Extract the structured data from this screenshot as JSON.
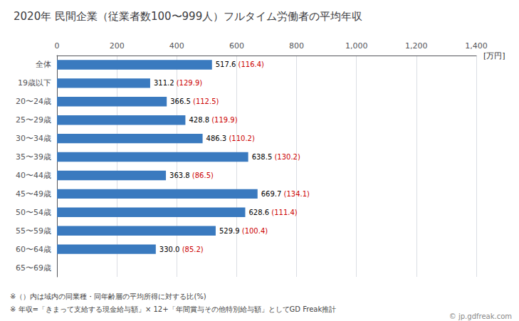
{
  "chart_data": {
    "type": "bar",
    "orientation": "horizontal",
    "title": "2020年 民間企業（従業者数100〜999人）フルタイム労働者の平均年収",
    "xlabel": "[万円]",
    "categories": [
      "全体",
      "19歳以下",
      "20〜24歳",
      "25〜29歳",
      "30〜34歳",
      "35〜39歳",
      "40〜44歳",
      "45〜49歳",
      "50〜54歳",
      "55〜59歳",
      "60〜64歳",
      "65〜69歳"
    ],
    "values": [
      517.6,
      311.2,
      366.5,
      428.8,
      486.3,
      638.5,
      363.8,
      669.7,
      628.6,
      529.9,
      330.0,
      0
    ],
    "value_labels": [
      "517.6",
      "311.2",
      "366.5",
      "428.8",
      "486.3",
      "638.5",
      "363.8",
      "669.7",
      "628.6",
      "529.9",
      "330.0",
      null
    ],
    "ratios": [
      116.4,
      129.9,
      112.5,
      119.9,
      110.2,
      130.2,
      86.5,
      134.1,
      111.4,
      100.4,
      85.2,
      null
    ],
    "ratio_color": "#cc0000",
    "color": "#3a7abf",
    "xlim": [
      0,
      1400
    ],
    "xticks": [
      0,
      200,
      400,
      600,
      800,
      1000,
      1200,
      1400
    ],
    "grid": true,
    "data_labels": true,
    "annotations": [
      "※（）内は域内の同業種・同年齢層の平均所得に対する比(%)",
      "※ 年収=「きまって支給する現金給与額」× 12+「年間賞与その他特別給与額」としてGD Freak推計",
      "© jp.gdfreak.com"
    ]
  }
}
